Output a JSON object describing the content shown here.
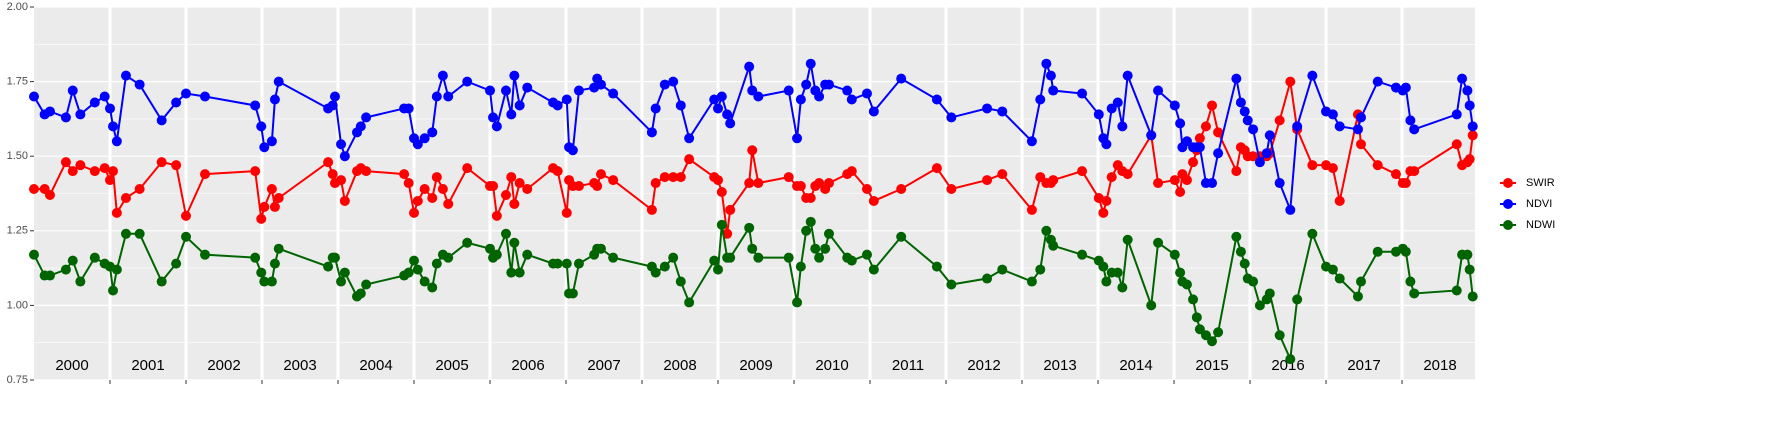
{
  "chart_data": {
    "type": "line",
    "x": [
      2000.0,
      2000.14,
      2000.21,
      2000.42,
      2000.51,
      2000.61,
      2000.8,
      2000.93,
      2001.0,
      2001.04,
      2001.09,
      2001.21,
      2001.39,
      2001.68,
      2001.87,
      2002.0,
      2002.25,
      2002.91,
      2002.99,
      2003.03,
      2003.13,
      2003.17,
      2003.22,
      2003.87,
      2003.93,
      2003.96,
      2004.04,
      2004.09,
      2004.25,
      2004.3,
      2004.37,
      2004.87,
      2004.93,
      2005.0,
      2005.05,
      2005.14,
      2005.24,
      2005.3,
      2005.38,
      2005.45,
      2005.7,
      2006.0,
      2006.04,
      2006.09,
      2006.21,
      2006.28,
      2006.32,
      2006.39,
      2006.49,
      2006.83,
      2006.89,
      2007.01,
      2007.04,
      2007.09,
      2007.17,
      2007.37,
      2007.41,
      2007.46,
      2007.62,
      2008.13,
      2008.18,
      2008.3,
      2008.41,
      2008.51,
      2008.62,
      2008.95,
      2009.0,
      2009.05,
      2009.12,
      2009.16,
      2009.41,
      2009.45,
      2009.53,
      2009.93,
      2010.04,
      2010.09,
      2010.16,
      2010.22,
      2010.28,
      2010.33,
      2010.41,
      2010.46,
      2010.7,
      2010.76,
      2010.96,
      2011.05,
      2011.41,
      2011.88,
      2012.07,
      2012.54,
      2012.74,
      2013.13,
      2013.24,
      2013.32,
      2013.38,
      2013.41,
      2013.79,
      2014.01,
      2014.07,
      2014.11,
      2014.18,
      2014.26,
      2014.32,
      2014.39,
      2014.7,
      2014.79,
      2015.01,
      2015.08,
      2015.11,
      2015.17,
      2015.25,
      2015.3,
      2015.34,
      2015.42,
      2015.5,
      2015.58,
      2015.82,
      2015.88,
      2015.93,
      2015.97,
      2016.04,
      2016.13,
      2016.22,
      2016.26,
      2016.39,
      2016.53,
      2016.62,
      2016.82,
      2017.0,
      2017.09,
      2017.18,
      2017.42,
      2017.46,
      2017.68,
      2017.92,
      2018.01,
      2018.05,
      2018.11,
      2018.16,
      2018.72,
      2018.79,
      2018.86,
      2018.89,
      2018.93
    ],
    "series": [
      {
        "name": "SWIR",
        "color": "#ff0000",
        "values": [
          1.39,
          1.39,
          1.37,
          1.48,
          1.45,
          1.47,
          1.45,
          1.46,
          1.42,
          1.45,
          1.31,
          1.36,
          1.39,
          1.48,
          1.47,
          1.3,
          1.44,
          1.45,
          1.29,
          1.33,
          1.39,
          1.33,
          1.36,
          1.48,
          1.44,
          1.41,
          1.42,
          1.35,
          1.45,
          1.46,
          1.45,
          1.44,
          1.41,
          1.31,
          1.35,
          1.39,
          1.36,
          1.43,
          1.39,
          1.34,
          1.46,
          1.4,
          1.4,
          1.3,
          1.37,
          1.43,
          1.34,
          1.41,
          1.39,
          1.46,
          1.45,
          1.31,
          1.42,
          1.4,
          1.4,
          1.41,
          1.4,
          1.44,
          1.42,
          1.32,
          1.41,
          1.43,
          1.43,
          1.43,
          1.49,
          1.43,
          1.42,
          1.38,
          1.24,
          1.32,
          1.41,
          1.52,
          1.41,
          1.43,
          1.4,
          1.4,
          1.36,
          1.36,
          1.4,
          1.41,
          1.39,
          1.41,
          1.44,
          1.45,
          1.39,
          1.35,
          1.39,
          1.46,
          1.39,
          1.42,
          1.44,
          1.32,
          1.43,
          1.41,
          1.41,
          1.42,
          1.45,
          1.36,
          1.31,
          1.35,
          1.43,
          1.47,
          1.45,
          1.44,
          1.57,
          1.41,
          1.42,
          1.38,
          1.44,
          1.42,
          1.48,
          1.52,
          1.56,
          1.6,
          1.67,
          1.58,
          1.45,
          1.53,
          1.52,
          1.5,
          1.5,
          1.5,
          1.5,
          1.51,
          1.62,
          1.75,
          1.59,
          1.47,
          1.47,
          1.46,
          1.35,
          1.64,
          1.54,
          1.47,
          1.44,
          1.41,
          1.41,
          1.45,
          1.45,
          1.54,
          1.47,
          1.48,
          1.49,
          1.57
        ]
      },
      {
        "name": "NDVI",
        "color": "#0000ff",
        "values": [
          1.7,
          1.64,
          1.65,
          1.63,
          1.72,
          1.64,
          1.68,
          1.7,
          1.66,
          1.6,
          1.55,
          1.77,
          1.74,
          1.62,
          1.68,
          1.71,
          1.7,
          1.67,
          1.6,
          1.53,
          1.55,
          1.69,
          1.75,
          1.66,
          1.67,
          1.7,
          1.54,
          1.5,
          1.58,
          1.6,
          1.63,
          1.66,
          1.66,
          1.56,
          1.54,
          1.56,
          1.58,
          1.7,
          1.77,
          1.7,
          1.75,
          1.72,
          1.63,
          1.6,
          1.72,
          1.64,
          1.77,
          1.67,
          1.73,
          1.68,
          1.67,
          1.69,
          1.53,
          1.52,
          1.72,
          1.73,
          1.76,
          1.74,
          1.71,
          1.58,
          1.66,
          1.74,
          1.75,
          1.67,
          1.56,
          1.69,
          1.66,
          1.7,
          1.64,
          1.61,
          1.8,
          1.72,
          1.7,
          1.72,
          1.56,
          1.69,
          1.74,
          1.81,
          1.72,
          1.7,
          1.74,
          1.74,
          1.72,
          1.69,
          1.71,
          1.65,
          1.76,
          1.69,
          1.63,
          1.66,
          1.65,
          1.55,
          1.69,
          1.81,
          1.77,
          1.72,
          1.71,
          1.64,
          1.56,
          1.54,
          1.66,
          1.68,
          1.6,
          1.77,
          1.57,
          1.72,
          1.67,
          1.61,
          1.53,
          1.55,
          1.53,
          1.53,
          1.53,
          1.41,
          1.41,
          1.51,
          1.76,
          1.68,
          1.65,
          1.62,
          1.59,
          1.48,
          1.51,
          1.57,
          1.41,
          1.32,
          1.6,
          1.77,
          1.65,
          1.64,
          1.6,
          1.59,
          1.63,
          1.75,
          1.73,
          1.72,
          1.73,
          1.62,
          1.59,
          1.64,
          1.76,
          1.72,
          1.67,
          1.6
        ]
      },
      {
        "name": "NDWI",
        "color": "#006400",
        "values": [
          1.17,
          1.1,
          1.1,
          1.12,
          1.15,
          1.08,
          1.16,
          1.14,
          1.13,
          1.05,
          1.12,
          1.24,
          1.24,
          1.08,
          1.14,
          1.23,
          1.17,
          1.16,
          1.11,
          1.08,
          1.08,
          1.14,
          1.19,
          1.13,
          1.16,
          1.16,
          1.08,
          1.11,
          1.03,
          1.04,
          1.07,
          1.1,
          1.11,
          1.15,
          1.12,
          1.08,
          1.06,
          1.14,
          1.17,
          1.16,
          1.21,
          1.19,
          1.16,
          1.17,
          1.24,
          1.11,
          1.21,
          1.11,
          1.17,
          1.14,
          1.14,
          1.14,
          1.04,
          1.04,
          1.14,
          1.17,
          1.19,
          1.19,
          1.16,
          1.13,
          1.11,
          1.13,
          1.16,
          1.08,
          1.01,
          1.15,
          1.12,
          1.27,
          1.16,
          1.16,
          1.26,
          1.19,
          1.16,
          1.16,
          1.01,
          1.13,
          1.25,
          1.28,
          1.19,
          1.16,
          1.19,
          1.24,
          1.16,
          1.15,
          1.17,
          1.12,
          1.23,
          1.13,
          1.07,
          1.09,
          1.12,
          1.08,
          1.12,
          1.25,
          1.22,
          1.2,
          1.17,
          1.15,
          1.13,
          1.08,
          1.11,
          1.11,
          1.06,
          1.22,
          1.0,
          1.21,
          1.17,
          1.11,
          1.08,
          1.07,
          1.02,
          0.96,
          0.92,
          0.9,
          0.88,
          0.91,
          1.23,
          1.18,
          1.14,
          1.09,
          1.08,
          1.0,
          1.02,
          1.04,
          0.9,
          0.82,
          1.02,
          1.24,
          1.13,
          1.12,
          1.09,
          1.03,
          1.08,
          1.18,
          1.18,
          1.19,
          1.18,
          1.08,
          1.04,
          1.05,
          1.17,
          1.17,
          1.12,
          1.03
        ]
      }
    ],
    "xlim": [
      2000,
      2018.96
    ],
    "xticks": [
      2001,
      2002,
      2003,
      2004,
      2005,
      2006,
      2007,
      2008,
      2009,
      2010,
      2011,
      2012,
      2013,
      2014,
      2015,
      2016,
      2017,
      2018
    ],
    "year_labels": [
      "2000",
      "2001",
      "2002",
      "2003",
      "2004",
      "2005",
      "2006",
      "2007",
      "2008",
      "2009",
      "2010",
      "2011",
      "2012",
      "2013",
      "2014",
      "2015",
      "2016",
      "2017",
      "2018"
    ],
    "ylim": [
      0.75,
      2.0
    ],
    "yticks": [
      0.75,
      {
        "value": 1.0,
        "label": "1.00"
      },
      1.25,
      {
        "value": 1.5,
        "label": "1.50"
      },
      1.75,
      {
        "value": 2.0,
        "label": "2.00"
      }
    ],
    "grid": true,
    "legend": "right"
  }
}
